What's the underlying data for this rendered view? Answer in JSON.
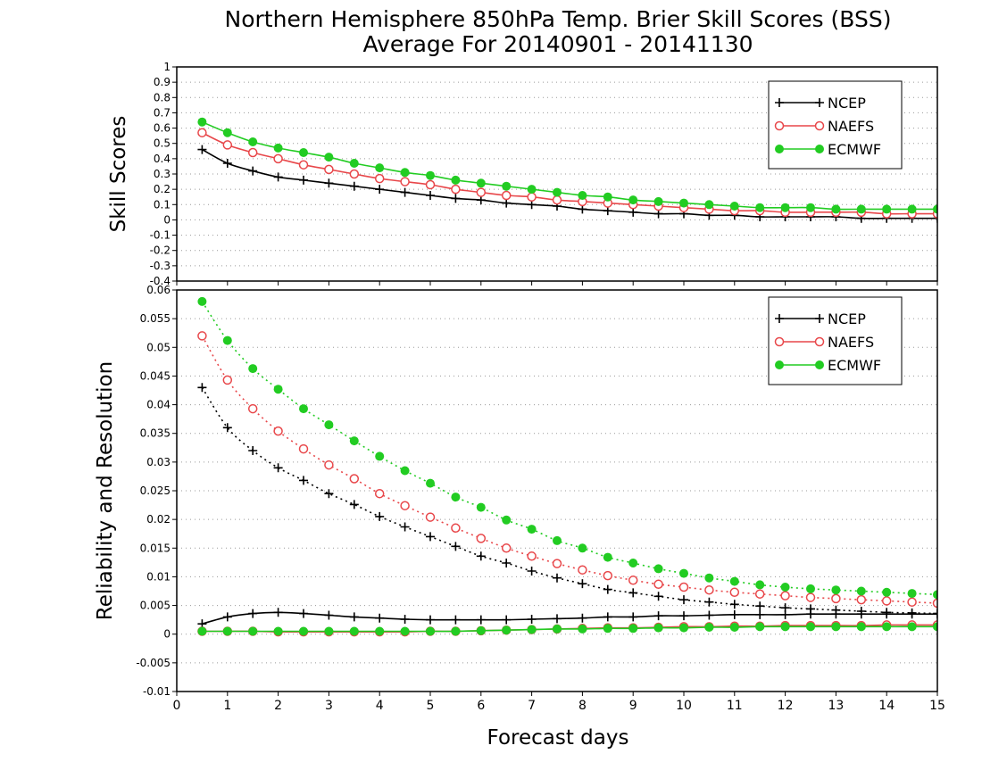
{
  "title": "Northern Hemisphere 850hPa Temp. Brier Skill Scores (BSS)",
  "subtitle": "Average For 20140901 - 20141130",
  "xlabel": "Forecast days",
  "colors": {
    "NCEP": "#000000",
    "NAEFS": "#e8474a",
    "ECMWF": "#22cc22"
  },
  "chart_data": [
    {
      "type": "line",
      "name": "bss",
      "ylabel": "Skill Scores",
      "xlim": [
        0,
        15
      ],
      "ylim": [
        -0.4,
        1
      ],
      "grid": true,
      "legend_position": "top-right",
      "x": [
        0.5,
        1,
        1.5,
        2,
        2.5,
        3,
        3.5,
        4,
        4.5,
        5,
        5.5,
        6,
        6.5,
        7,
        7.5,
        8,
        8.5,
        9,
        9.5,
        10,
        10.5,
        11,
        11.5,
        12,
        12.5,
        13,
        13.5,
        14,
        14.5,
        15
      ],
      "series": [
        {
          "name": "NCEP",
          "style": "solid",
          "marker": "plus",
          "values": [
            0.46,
            0.37,
            0.32,
            0.28,
            0.26,
            0.24,
            0.22,
            0.2,
            0.18,
            0.16,
            0.14,
            0.13,
            0.11,
            0.1,
            0.09,
            0.07,
            0.06,
            0.05,
            0.04,
            0.04,
            0.03,
            0.03,
            0.02,
            0.02,
            0.02,
            0.02,
            0.01,
            0.01,
            0.01,
            0.01
          ]
        },
        {
          "name": "NAEFS",
          "style": "solid",
          "marker": "open-circle",
          "values": [
            0.57,
            0.49,
            0.44,
            0.4,
            0.36,
            0.33,
            0.3,
            0.27,
            0.25,
            0.23,
            0.2,
            0.18,
            0.16,
            0.15,
            0.13,
            0.12,
            0.11,
            0.1,
            0.09,
            0.08,
            0.07,
            0.06,
            0.06,
            0.05,
            0.05,
            0.05,
            0.05,
            0.04,
            0.04,
            0.04
          ]
        },
        {
          "name": "ECMWF",
          "style": "solid",
          "marker": "filled-circle",
          "values": [
            0.64,
            0.57,
            0.51,
            0.47,
            0.44,
            0.41,
            0.37,
            0.34,
            0.31,
            0.29,
            0.26,
            0.24,
            0.22,
            0.2,
            0.18,
            0.16,
            0.15,
            0.13,
            0.12,
            0.11,
            0.1,
            0.09,
            0.08,
            0.08,
            0.08,
            0.07,
            0.07,
            0.07,
            0.07,
            0.07
          ]
        }
      ]
    },
    {
      "type": "line",
      "name": "reliability-resolution",
      "ylabel": "Reliability and Resolution",
      "xlim": [
        0,
        15
      ],
      "ylim": [
        -0.01,
        0.06
      ],
      "grid": true,
      "legend_position": "top-right",
      "x": [
        0.5,
        1,
        1.5,
        2,
        2.5,
        3,
        3.5,
        4,
        4.5,
        5,
        5.5,
        6,
        6.5,
        7,
        7.5,
        8,
        8.5,
        9,
        9.5,
        10,
        10.5,
        11,
        11.5,
        12,
        12.5,
        13,
        13.5,
        14,
        14.5,
        15
      ],
      "series": [
        {
          "name": "NCEP",
          "style": "dotted",
          "marker": "plus",
          "values": [
            0.043,
            0.036,
            0.032,
            0.029,
            0.0268,
            0.0245,
            0.0226,
            0.0205,
            0.0187,
            0.017,
            0.0153,
            0.0136,
            0.0124,
            0.011,
            0.0098,
            0.0088,
            0.0078,
            0.0072,
            0.0066,
            0.006,
            0.0056,
            0.0052,
            0.0049,
            0.0046,
            0.0044,
            0.0042,
            0.004,
            0.0038,
            0.0037,
            0.0036
          ]
        },
        {
          "name": "NAEFS",
          "style": "dotted",
          "marker": "open-circle",
          "values": [
            0.052,
            0.0443,
            0.0393,
            0.0354,
            0.0323,
            0.0295,
            0.0271,
            0.0245,
            0.0224,
            0.0204,
            0.0185,
            0.0167,
            0.015,
            0.0136,
            0.0123,
            0.0112,
            0.0102,
            0.0094,
            0.0087,
            0.0082,
            0.0077,
            0.0073,
            0.007,
            0.0067,
            0.0064,
            0.0062,
            0.006,
            0.0058,
            0.0056,
            0.0054
          ]
        },
        {
          "name": "ECMWF",
          "style": "dotted",
          "marker": "filled-circle",
          "values": [
            0.058,
            0.0512,
            0.0463,
            0.0427,
            0.0393,
            0.0365,
            0.0337,
            0.031,
            0.0285,
            0.0263,
            0.0239,
            0.0221,
            0.0199,
            0.0183,
            0.0163,
            0.015,
            0.0134,
            0.0124,
            0.0114,
            0.0106,
            0.0098,
            0.0092,
            0.0086,
            0.0082,
            0.0079,
            0.0077,
            0.0075,
            0.0073,
            0.0071,
            0.0069
          ]
        },
        {
          "name": "NCEP",
          "style": "solid",
          "marker": "plus",
          "in_legend": false,
          "values": [
            0.0018,
            0.003,
            0.0036,
            0.0038,
            0.0036,
            0.0033,
            0.003,
            0.0028,
            0.0026,
            0.0025,
            0.0025,
            0.0025,
            0.0025,
            0.0026,
            0.0027,
            0.0028,
            0.003,
            0.003,
            0.0032,
            0.0032,
            0.0033,
            0.0034,
            0.0034,
            0.0034,
            0.0035,
            0.0035,
            0.0035,
            0.0035,
            0.0035,
            0.0035
          ]
        },
        {
          "name": "NAEFS",
          "style": "solid",
          "marker": "open-circle",
          "in_legend": false,
          "values": [
            0.0005,
            0.0005,
            0.0005,
            0.0004,
            0.0004,
            0.0004,
            0.0004,
            0.0004,
            0.0004,
            0.0005,
            0.0005,
            0.0006,
            0.0007,
            0.0008,
            0.0009,
            0.001,
            0.0011,
            0.0011,
            0.0012,
            0.0013,
            0.0013,
            0.0014,
            0.0014,
            0.0015,
            0.0015,
            0.0015,
            0.0015,
            0.0016,
            0.0016,
            0.0016
          ]
        },
        {
          "name": "ECMWF",
          "style": "solid",
          "marker": "filled-circle",
          "in_legend": false,
          "values": [
            0.0005,
            0.0005,
            0.0005,
            0.0005,
            0.0005,
            0.0005,
            0.0005,
            0.0005,
            0.0005,
            0.0005,
            0.0005,
            0.0006,
            0.0007,
            0.0008,
            0.0009,
            0.0009,
            0.001,
            0.001,
            0.0011,
            0.0011,
            0.0012,
            0.0012,
            0.0013,
            0.0013,
            0.0013,
            0.0013,
            0.0013,
            0.0013,
            0.0013,
            0.0013
          ]
        }
      ]
    }
  ]
}
